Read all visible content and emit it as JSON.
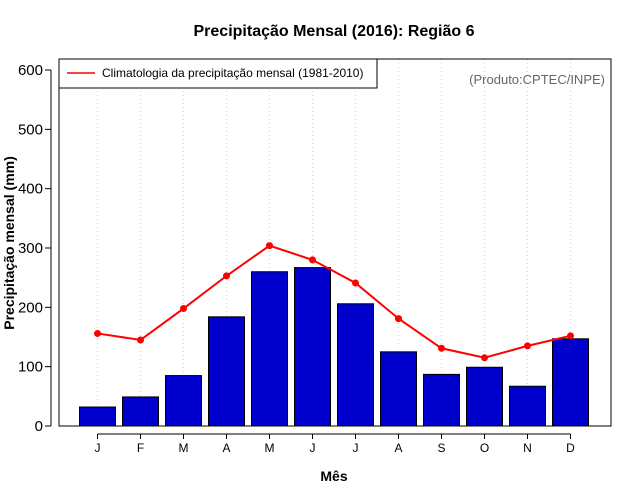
{
  "chart_data": {
    "type": "bar",
    "title": "Precipitação Mensal (2016): Região 6",
    "xlabel": "Mês",
    "ylabel": "Precipitação mensal (mm)",
    "ylim": [
      0,
      600
    ],
    "yticks": [
      0,
      100,
      200,
      300,
      400,
      500,
      600
    ],
    "grid": "vertical dotted",
    "categories": [
      "J",
      "F",
      "M",
      "A",
      "M",
      "J",
      "J",
      "A",
      "S",
      "O",
      "N",
      "D"
    ],
    "series": [
      {
        "name": "Precipitação mensal 2016",
        "type": "bar",
        "color": "#0000cc",
        "values": [
          32,
          49,
          85,
          184,
          260,
          267,
          206,
          125,
          87,
          99,
          67,
          147
        ]
      },
      {
        "name": "Climatologia da precipitação mensal (1981-2010)",
        "type": "line",
        "color": "#ff0000",
        "values": [
          156,
          145,
          198,
          253,
          304,
          280,
          241,
          181,
          131,
          115,
          135,
          152
        ]
      }
    ],
    "legend": {
      "position": "top-left",
      "label": "Climatologia da precipitação mensal (1981-2010)"
    },
    "annotation": "(Produto:CPTEC/INPE)"
  },
  "colors": {
    "bar": "#0000cc",
    "line": "#ff0000",
    "grid": "#d3d3d3",
    "credit": "#666666"
  }
}
